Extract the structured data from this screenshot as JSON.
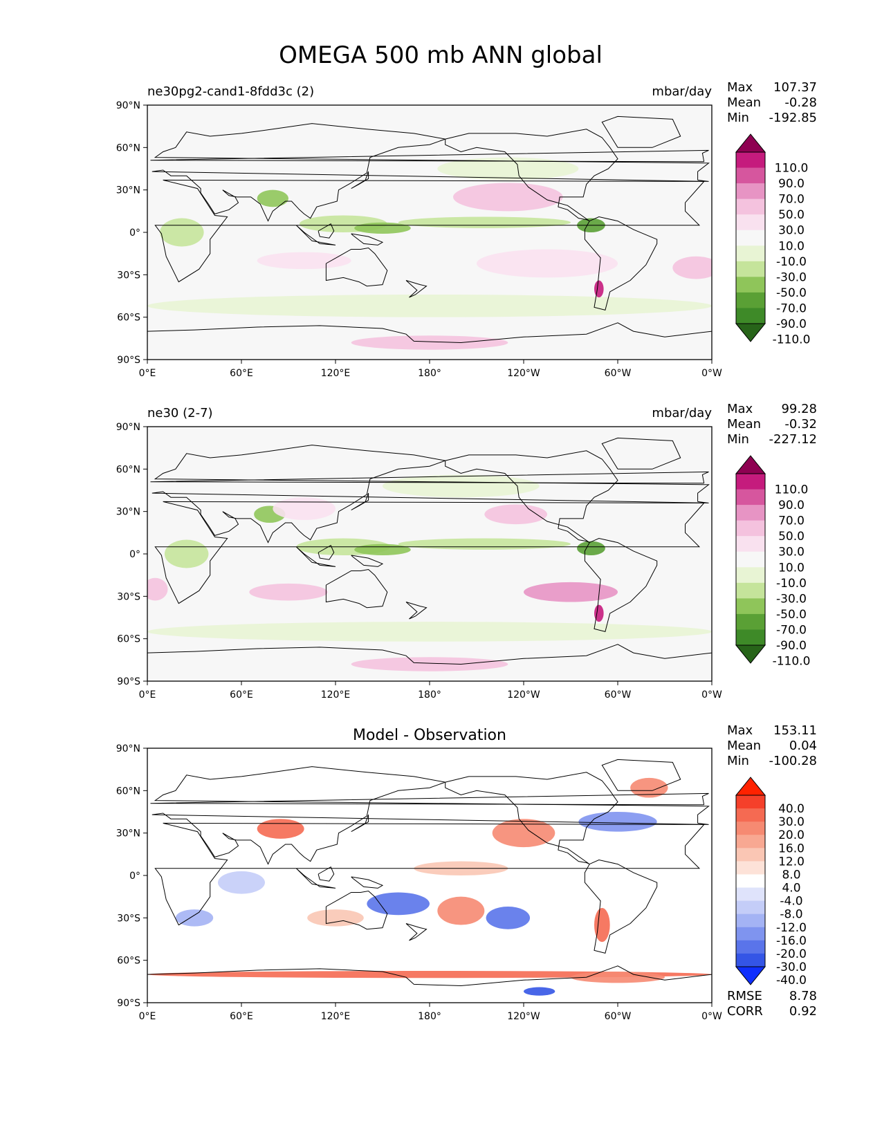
{
  "title": "OMEGA 500 mb ANN global",
  "lat_ticks": [
    "90°N",
    "60°N",
    "30°N",
    "0°",
    "30°S",
    "60°S",
    "90°S"
  ],
  "lon_ticks": [
    "0°E",
    "60°E",
    "120°E",
    "180°",
    "120°W",
    "60°W",
    "0°W"
  ],
  "panels": [
    {
      "id": "test",
      "title_left": "ne30pg2-cand1-8fdd3c (2)",
      "title_center": "",
      "units": "mbar/day",
      "stats": [
        {
          "label": "Max",
          "value": "107.37"
        },
        {
          "label": "Mean",
          "value": "-0.28"
        },
        {
          "label": "Min",
          "value": "-192.85"
        }
      ],
      "colorbar": {
        "levels": [
          "110.0",
          "90.0",
          "70.0",
          "50.0",
          "30.0",
          "10.0",
          "-10.0",
          "-30.0",
          "-50.0",
          "-70.0",
          "-90.0",
          "-110.0"
        ],
        "colors": [
          "#8e0152",
          "#c51b7d",
          "#d6569e",
          "#e794c4",
          "#f4c2de",
          "#f9e1ef",
          "#f7f7f7",
          "#e8f4d4",
          "#c5e49b",
          "#8fc55a",
          "#5aa035",
          "#3e8a28",
          "#276419"
        ]
      },
      "footer": []
    },
    {
      "id": "reference",
      "title_left": "ne30 (2-7)",
      "title_center": "",
      "units": "mbar/day",
      "stats": [
        {
          "label": "Max",
          "value": "99.28"
        },
        {
          "label": "Mean",
          "value": "-0.32"
        },
        {
          "label": "Min",
          "value": "-227.12"
        }
      ],
      "colorbar": {
        "levels": [
          "110.0",
          "90.0",
          "70.0",
          "50.0",
          "30.0",
          "10.0",
          "-10.0",
          "-30.0",
          "-50.0",
          "-70.0",
          "-90.0",
          "-110.0"
        ],
        "colors": [
          "#8e0152",
          "#c51b7d",
          "#d6569e",
          "#e794c4",
          "#f4c2de",
          "#f9e1ef",
          "#f7f7f7",
          "#e8f4d4",
          "#c5e49b",
          "#8fc55a",
          "#5aa035",
          "#3e8a28",
          "#276419"
        ]
      },
      "footer": []
    },
    {
      "id": "difference",
      "title_left": "",
      "title_center": "Model - Observation",
      "units": "",
      "stats": [
        {
          "label": "Max",
          "value": "153.11"
        },
        {
          "label": "Mean",
          "value": "0.04"
        },
        {
          "label": "Min",
          "value": "-100.28"
        }
      ],
      "colorbar": {
        "levels": [
          "40.0",
          "30.0",
          "20.0",
          "16.0",
          "12.0",
          "8.0",
          "4.0",
          "-4.0",
          "-8.0",
          "-12.0",
          "-16.0",
          "-20.0",
          "-30.0",
          "-40.0"
        ],
        "colors": [
          "#ff2200",
          "#f5402a",
          "#f56a52",
          "#f68a72",
          "#f8a892",
          "#fac6b4",
          "#fde2d8",
          "#ffffff",
          "#dfe3fb",
          "#c4cdf8",
          "#a4b3f4",
          "#7f94ef",
          "#5a74ea",
          "#3455e6",
          "#0f2ffd"
        ]
      },
      "footer": [
        {
          "label": "RMSE",
          "value": "8.78"
        },
        {
          "label": "CORR",
          "value": "0.92"
        }
      ]
    }
  ],
  "blobs": [
    [
      {
        "lon": 125,
        "lat": 6,
        "rlon": 28,
        "rlat": 6,
        "color": "#c5e49b"
      },
      {
        "lon": 150,
        "lat": 3,
        "rlon": 18,
        "rlat": 4,
        "color": "#8fc55a"
      },
      {
        "lon": 215,
        "lat": 7,
        "rlon": 55,
        "rlat": 4,
        "color": "#c5e49b"
      },
      {
        "lon": 283,
        "lat": 5,
        "rlon": 9,
        "rlat": 5,
        "color": "#5aa035"
      },
      {
        "lon": 22,
        "lat": 0,
        "rlon": 14,
        "rlat": 10,
        "color": "#c5e49b"
      },
      {
        "lon": 80,
        "lat": 24,
        "rlon": 10,
        "rlat": 6,
        "color": "#8fc55a"
      },
      {
        "lon": 180,
        "lat": -52,
        "rlon": 180,
        "rlat": 8,
        "color": "#e8f4d4"
      },
      {
        "lon": 230,
        "lat": 45,
        "rlon": 45,
        "rlat": 8,
        "color": "#e8f4d4"
      },
      {
        "lon": 230,
        "lat": 25,
        "rlon": 35,
        "rlat": 10,
        "color": "#f4c2de"
      },
      {
        "lon": 255,
        "lat": -22,
        "rlon": 45,
        "rlat": 10,
        "color": "#f9e1ef"
      },
      {
        "lon": 350,
        "lat": -25,
        "rlon": 15,
        "rlat": 8,
        "color": "#f4c2de"
      },
      {
        "lon": 100,
        "lat": -20,
        "rlon": 30,
        "rlat": 6,
        "color": "#f9e1ef"
      },
      {
        "lon": 288,
        "lat": -40,
        "rlon": 3,
        "rlat": 6,
        "color": "#c51b7d"
      },
      {
        "lon": 180,
        "lat": -78,
        "rlon": 50,
        "rlat": 5,
        "color": "#f4c2de"
      }
    ],
    [
      {
        "lon": 125,
        "lat": 5,
        "rlon": 30,
        "rlat": 6,
        "color": "#c5e49b"
      },
      {
        "lon": 150,
        "lat": 3,
        "rlon": 18,
        "rlat": 4,
        "color": "#8fc55a"
      },
      {
        "lon": 215,
        "lat": 7,
        "rlon": 55,
        "rlat": 4,
        "color": "#c5e49b"
      },
      {
        "lon": 283,
        "lat": 4,
        "rlon": 9,
        "rlat": 5,
        "color": "#5aa035"
      },
      {
        "lon": 25,
        "lat": 0,
        "rlon": 14,
        "rlat": 10,
        "color": "#c5e49b"
      },
      {
        "lon": 78,
        "lat": 28,
        "rlon": 10,
        "rlat": 6,
        "color": "#8fc55a"
      },
      {
        "lon": 180,
        "lat": -55,
        "rlon": 180,
        "rlat": 7,
        "color": "#e8f4d4"
      },
      {
        "lon": 200,
        "lat": 48,
        "rlon": 50,
        "rlat": 8,
        "color": "#e8f4d4"
      },
      {
        "lon": 235,
        "lat": 28,
        "rlon": 20,
        "rlat": 7,
        "color": "#f4c2de"
      },
      {
        "lon": 270,
        "lat": -27,
        "rlon": 30,
        "rlat": 7,
        "color": "#e794c4"
      },
      {
        "lon": 90,
        "lat": -27,
        "rlon": 25,
        "rlat": 6,
        "color": "#f4c2de"
      },
      {
        "lon": 5,
        "lat": -25,
        "rlon": 8,
        "rlat": 8,
        "color": "#f4c2de"
      },
      {
        "lon": 100,
        "lat": 32,
        "rlon": 20,
        "rlat": 8,
        "color": "#f9e1ef"
      },
      {
        "lon": 288,
        "lat": -42,
        "rlon": 3,
        "rlat": 6,
        "color": "#c51b7d"
      },
      {
        "lon": 180,
        "lat": -78,
        "rlon": 50,
        "rlat": 5,
        "color": "#f4c2de"
      }
    ],
    [
      {
        "lon": 85,
        "lat": 33,
        "rlon": 15,
        "rlat": 7,
        "color": "#f56a52"
      },
      {
        "lon": 160,
        "lat": -20,
        "rlon": 20,
        "rlat": 8,
        "color": "#5a74ea"
      },
      {
        "lon": 240,
        "lat": 30,
        "rlon": 20,
        "rlat": 10,
        "color": "#f68a72"
      },
      {
        "lon": 200,
        "lat": -25,
        "rlon": 15,
        "rlat": 10,
        "color": "#f68a72"
      },
      {
        "lon": 230,
        "lat": -30,
        "rlon": 14,
        "rlat": 8,
        "color": "#5a74ea"
      },
      {
        "lon": 300,
        "lat": 38,
        "rlon": 25,
        "rlat": 7,
        "color": "#7f94ef"
      },
      {
        "lon": 290,
        "lat": -35,
        "rlon": 5,
        "rlat": 12,
        "color": "#f56a52"
      },
      {
        "lon": 320,
        "lat": 62,
        "rlon": 12,
        "rlat": 7,
        "color": "#f68a72"
      },
      {
        "lon": 30,
        "lat": -30,
        "rlon": 12,
        "rlat": 6,
        "color": "#a4b3f4"
      },
      {
        "lon": 120,
        "lat": -30,
        "rlon": 18,
        "rlat": 6,
        "color": "#fac6b4"
      },
      {
        "lon": 60,
        "lat": -5,
        "rlon": 15,
        "rlat": 8,
        "color": "#c4cdf8"
      },
      {
        "lon": 180,
        "lat": -70,
        "rlon": 180,
        "rlat": 2.5,
        "color": "#f56a52"
      },
      {
        "lon": 300,
        "lat": -72,
        "rlon": 30,
        "rlat": 4,
        "color": "#f68a72"
      },
      {
        "lon": 250,
        "lat": -82,
        "rlon": 10,
        "rlat": 3,
        "color": "#3455e6"
      },
      {
        "lon": 200,
        "lat": 5,
        "rlon": 30,
        "rlat": 5,
        "color": "#fac6b4"
      }
    ]
  ]
}
